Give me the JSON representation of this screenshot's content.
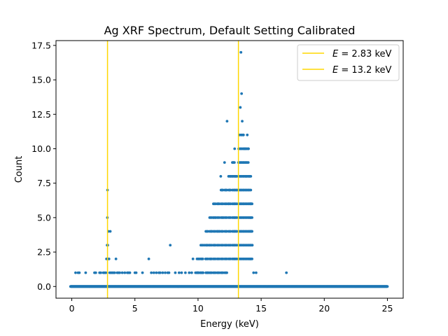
{
  "chart_data": {
    "type": "scatter",
    "title": "Ag XRF Spectrum, Default Setting Calibrated",
    "xlabel": "Energy (keV)",
    "ylabel": "Count",
    "xlim": [
      -1.25,
      26.25
    ],
    "ylim": [
      -0.85,
      17.85
    ],
    "xticks": [
      0,
      5,
      10,
      15,
      20,
      25
    ],
    "xtick_labels": [
      "0",
      "5",
      "10",
      "15",
      "20",
      "25"
    ],
    "yticks": [
      0,
      2.5,
      5,
      7.5,
      10,
      12.5,
      15,
      17.5
    ],
    "ytick_labels": [
      "0.0",
      "2.5",
      "5.0",
      "7.5",
      "10.0",
      "12.5",
      "15.0",
      "17.5"
    ],
    "grid": false,
    "legend_position": "top-right",
    "marker_color": "#1f77b4",
    "line_color": "#ffd700",
    "vlines": [
      {
        "x": 2.83,
        "label_var": "E",
        "label_eq": " = 2.83 keV"
      },
      {
        "x": 13.2,
        "label_var": "E",
        "label_eq": " = 13.2 keV"
      }
    ],
    "baseline": {
      "x_start": -0.1,
      "x_end": 25.0,
      "step": 0.01,
      "y": 0
    },
    "series": [
      {
        "points": [
          [
            0.3,
            1
          ],
          [
            0.5,
            1
          ],
          [
            0.6,
            1
          ],
          [
            1.1,
            1
          ],
          [
            1.8,
            1
          ],
          [
            1.9,
            1
          ],
          [
            2.2,
            1
          ],
          [
            2.3,
            1
          ],
          [
            2.5,
            1
          ],
          [
            2.6,
            1
          ],
          [
            2.7,
            1
          ],
          [
            2.75,
            2
          ],
          [
            2.8,
            3
          ],
          [
            2.82,
            5
          ],
          [
            2.83,
            7
          ],
          [
            2.85,
            3
          ],
          [
            2.87,
            2
          ],
          [
            2.9,
            4
          ],
          [
            2.95,
            2
          ],
          [
            3.0,
            1
          ],
          [
            3.05,
            4
          ],
          [
            3.1,
            1
          ],
          [
            3.2,
            1
          ],
          [
            3.3,
            1
          ],
          [
            3.4,
            1
          ],
          [
            3.5,
            2
          ],
          [
            3.6,
            1
          ],
          [
            3.7,
            1
          ],
          [
            3.8,
            1
          ],
          [
            4.0,
            1
          ],
          [
            4.2,
            1
          ],
          [
            4.4,
            1
          ],
          [
            4.5,
            1
          ],
          [
            4.6,
            1
          ],
          [
            5.0,
            1
          ],
          [
            5.1,
            1
          ],
          [
            5.6,
            1
          ],
          [
            6.1,
            2
          ],
          [
            6.3,
            1
          ],
          [
            6.5,
            1
          ],
          [
            6.7,
            1
          ],
          [
            6.9,
            1
          ],
          [
            7.0,
            1
          ],
          [
            7.2,
            1
          ],
          [
            7.4,
            1
          ],
          [
            7.6,
            1
          ],
          [
            7.7,
            1
          ],
          [
            7.8,
            3
          ],
          [
            8.2,
            1
          ],
          [
            8.5,
            1
          ],
          [
            8.7,
            1
          ],
          [
            9.0,
            1
          ],
          [
            9.3,
            1
          ],
          [
            9.5,
            1
          ],
          [
            9.6,
            2
          ],
          [
            9.8,
            1
          ],
          [
            9.9,
            1
          ],
          [
            10.0,
            1
          ],
          [
            10.1,
            2
          ],
          [
            10.2,
            1
          ],
          [
            10.3,
            2
          ],
          [
            10.4,
            1
          ],
          [
            10.5,
            3
          ],
          [
            10.6,
            2
          ],
          [
            10.7,
            3
          ],
          [
            10.8,
            1
          ],
          [
            10.9,
            3
          ],
          [
            11.0,
            2
          ],
          [
            11.1,
            4
          ],
          [
            11.2,
            5
          ],
          [
            11.3,
            3
          ],
          [
            11.4,
            5
          ],
          [
            11.5,
            4
          ],
          [
            11.6,
            6
          ],
          [
            11.7,
            4
          ],
          [
            11.8,
            8
          ],
          [
            11.9,
            7
          ],
          [
            12.0,
            5
          ],
          [
            12.1,
            9
          ],
          [
            12.2,
            7
          ],
          [
            12.3,
            12
          ],
          [
            12.4,
            6
          ],
          [
            12.5,
            7
          ],
          [
            12.6,
            8
          ],
          [
            12.7,
            8
          ],
          [
            12.8,
            9
          ],
          [
            12.9,
            10
          ],
          [
            13.0,
            8
          ],
          [
            13.1,
            7
          ],
          [
            13.2,
            9
          ],
          [
            13.3,
            11
          ],
          [
            13.35,
            13
          ],
          [
            13.4,
            17
          ],
          [
            13.45,
            14
          ],
          [
            13.5,
            12
          ],
          [
            13.6,
            11
          ],
          [
            13.7,
            10
          ],
          [
            13.8,
            8
          ],
          [
            13.9,
            11
          ],
          [
            14.0,
            10
          ],
          [
            14.1,
            8
          ],
          [
            14.2,
            6
          ],
          [
            14.25,
            4
          ],
          [
            14.3,
            3
          ],
          [
            14.4,
            1
          ],
          [
            14.6,
            1
          ],
          [
            17.0,
            1
          ]
        ],
        "columns": [
          {
            "x": 10.0,
            "from": 1,
            "to": 2
          },
          {
            "x": 10.3,
            "from": 1,
            "to": 3
          },
          {
            "x": 10.7,
            "from": 1,
            "to": 4
          },
          {
            "x": 11.0,
            "from": 1,
            "to": 5
          },
          {
            "x": 11.3,
            "from": 1,
            "to": 6
          },
          {
            "x": 11.6,
            "from": 1,
            "to": 6
          },
          {
            "x": 11.9,
            "from": 1,
            "to": 7
          },
          {
            "x": 12.2,
            "from": 1,
            "to": 7
          },
          {
            "x": 12.5,
            "from": 2,
            "to": 8
          },
          {
            "x": 12.8,
            "from": 2,
            "to": 9
          },
          {
            "x": 13.0,
            "from": 2,
            "to": 8
          },
          {
            "x": 13.3,
            "from": 2,
            "to": 10
          },
          {
            "x": 13.5,
            "from": 2,
            "to": 11
          },
          {
            "x": 13.7,
            "from": 2,
            "to": 10
          },
          {
            "x": 13.9,
            "from": 2,
            "to": 10
          },
          {
            "x": 14.1,
            "from": 2,
            "to": 8
          },
          {
            "x": 14.2,
            "from": 2,
            "to": 6
          }
        ]
      }
    ]
  }
}
